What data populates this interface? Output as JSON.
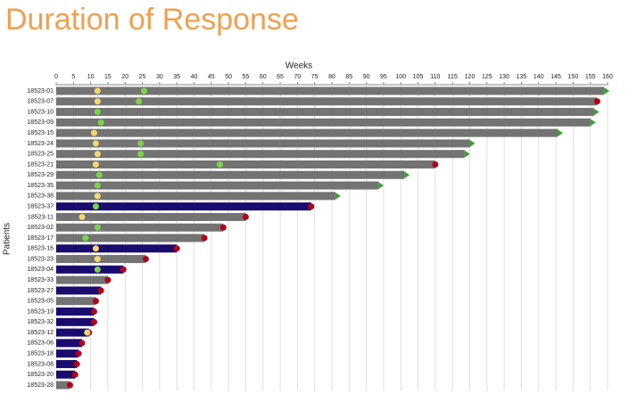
{
  "chart_data": {
    "type": "swimmer",
    "title": "Duration of Response",
    "x_label": "Weeks",
    "y_label": "Patients",
    "xlim": [
      0,
      160
    ],
    "xticks": [
      0,
      5,
      10,
      15,
      20,
      25,
      30,
      35,
      40,
      45,
      50,
      55,
      60,
      65,
      70,
      75,
      80,
      85,
      90,
      95,
      100,
      105,
      110,
      115,
      120,
      125,
      130,
      135,
      140,
      145,
      150,
      155,
      160
    ],
    "grid": true,
    "categories": [
      "18523-01",
      "18523-07",
      "18523-10",
      "18523-09",
      "18523-15",
      "18523-24",
      "18523-25",
      "18523-21",
      "18523-29",
      "18523-35",
      "18523-38",
      "18523-37",
      "18523-11",
      "18523-02",
      "18523-17",
      "18523-16",
      "18523-23",
      "18523-04",
      "18523-33",
      "18523-27",
      "18523-05",
      "18523-19",
      "18523-32",
      "18523-12",
      "18523-06",
      "18523-18",
      "18523-08",
      "18523-20",
      "18523-28"
    ],
    "values": [
      159,
      157,
      156,
      155,
      145.5,
      120,
      118.5,
      110,
      101,
      93.5,
      81,
      74,
      55,
      48.5,
      43,
      35,
      26,
      19.5,
      15,
      13,
      11.5,
      11,
      11,
      9.5,
      7.5,
      6.5,
      6,
      5.5,
      4
    ],
    "bar_colors": [
      "#737373",
      "#737373",
      "#737373",
      "#737373",
      "#737373",
      "#737373",
      "#737373",
      "#737373",
      "#737373",
      "#737373",
      "#737373",
      "#1a0b6e",
      "#737373",
      "#737373",
      "#737373",
      "#1a0b6e",
      "#737373",
      "#1a0b6e",
      "#737373",
      "#1a0b6e",
      "#737373",
      "#1a0b6e",
      "#1a0b6e",
      "#1a0b6e",
      "#1a0b6e",
      "#1a0b6e",
      "#1a0b6e",
      "#1a0b6e",
      "#737373"
    ],
    "end_shapes": [
      "triangle",
      "circle",
      "triangle",
      "triangle",
      "triangle",
      "triangle",
      "triangle",
      "circle",
      "triangle",
      "triangle",
      "triangle",
      "circle",
      "circle",
      "circle",
      "circle",
      "circle",
      "circle",
      "circle",
      "circle",
      "circle",
      "circle",
      "circle",
      "circle",
      "circle",
      "circle",
      "circle",
      "circle",
      "circle",
      "circle"
    ],
    "end_colors": {
      "triangle": "#3aa035",
      "circle": "#b3001b"
    },
    "series": [
      {
        "color": "#f5d76e",
        "values": [
          12,
          12,
          null,
          null,
          11,
          11.5,
          12,
          11.5,
          null,
          null,
          12,
          null,
          7.5,
          null,
          null,
          11.5,
          12,
          null,
          null,
          null,
          null,
          null,
          null,
          9,
          null,
          null,
          null,
          null,
          null
        ]
      },
      {
        "color": "#7dd34a",
        "values": [
          25.5,
          24,
          12,
          13,
          null,
          24.5,
          24.5,
          47.5,
          12.5,
          12,
          null,
          11.5,
          null,
          12,
          8.5,
          null,
          null,
          12,
          null,
          null,
          null,
          null,
          null,
          null,
          null,
          null,
          null,
          null,
          null
        ]
      }
    ]
  }
}
